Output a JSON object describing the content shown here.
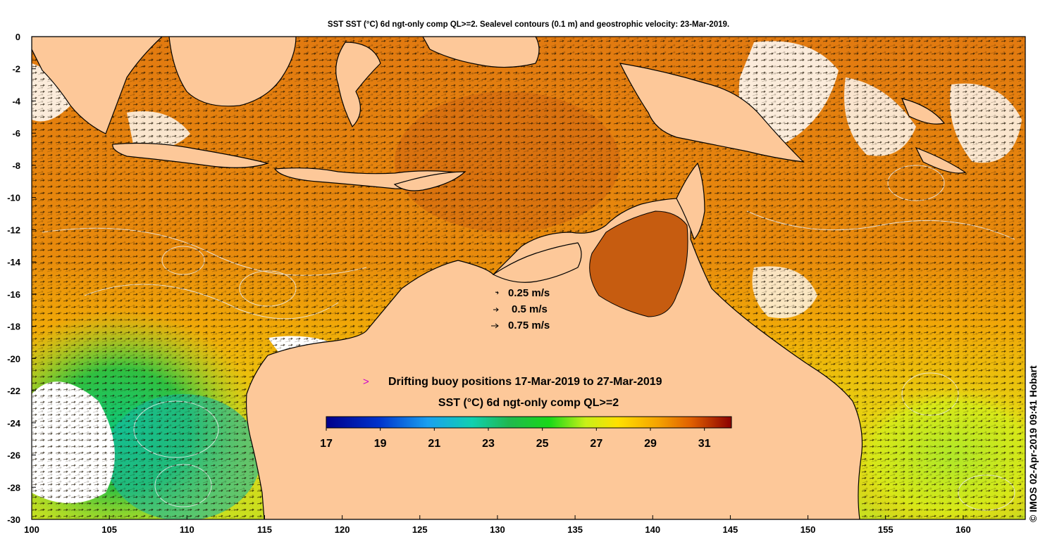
{
  "title": "SST SST (°C) 6d ngt-only comp QL>=2. Sealevel contours (0.1 m) and geostrophic velocity: 23-Mar-2019.",
  "credit": "© IMOS 02-Apr-2019 09:41 Hobart",
  "axes": {
    "x_ticks": [
      "100",
      "105",
      "110",
      "115",
      "120",
      "125",
      "130",
      "135",
      "140",
      "145",
      "150",
      "155",
      "160"
    ],
    "y_ticks": [
      "0",
      "-2",
      "-4",
      "-6",
      "-8",
      "-10",
      "-12",
      "-14",
      "-16",
      "-18",
      "-20",
      "-22",
      "-24",
      "-26",
      "-28",
      "-30"
    ],
    "lon_range": [
      100,
      164
    ],
    "lat_range": [
      -30,
      0
    ]
  },
  "velocity_key": {
    "items": [
      {
        "label": "0.25 m/s",
        "speed": 0.25
      },
      {
        "label": "0.5 m/s",
        "speed": 0.5
      },
      {
        "label": "0.75 m/s",
        "speed": 0.75
      }
    ]
  },
  "buoy_legend": {
    "symbol": ">",
    "label": "Drifting buoy positions 17-Mar-2019 to 27-Mar-2019",
    "color": "#cc00cc"
  },
  "colorbar": {
    "title": "SST (°C) 6d ngt-only comp QL>=2",
    "min": 17,
    "max": 32,
    "tick_labels": [
      "17",
      "19",
      "21",
      "23",
      "25",
      "27",
      "29",
      "31"
    ]
  },
  "colors": {
    "land": "#fdc899",
    "no_data": "#ffffff",
    "warm_sea": "#e8850e",
    "contour": "#e8e8e8"
  }
}
